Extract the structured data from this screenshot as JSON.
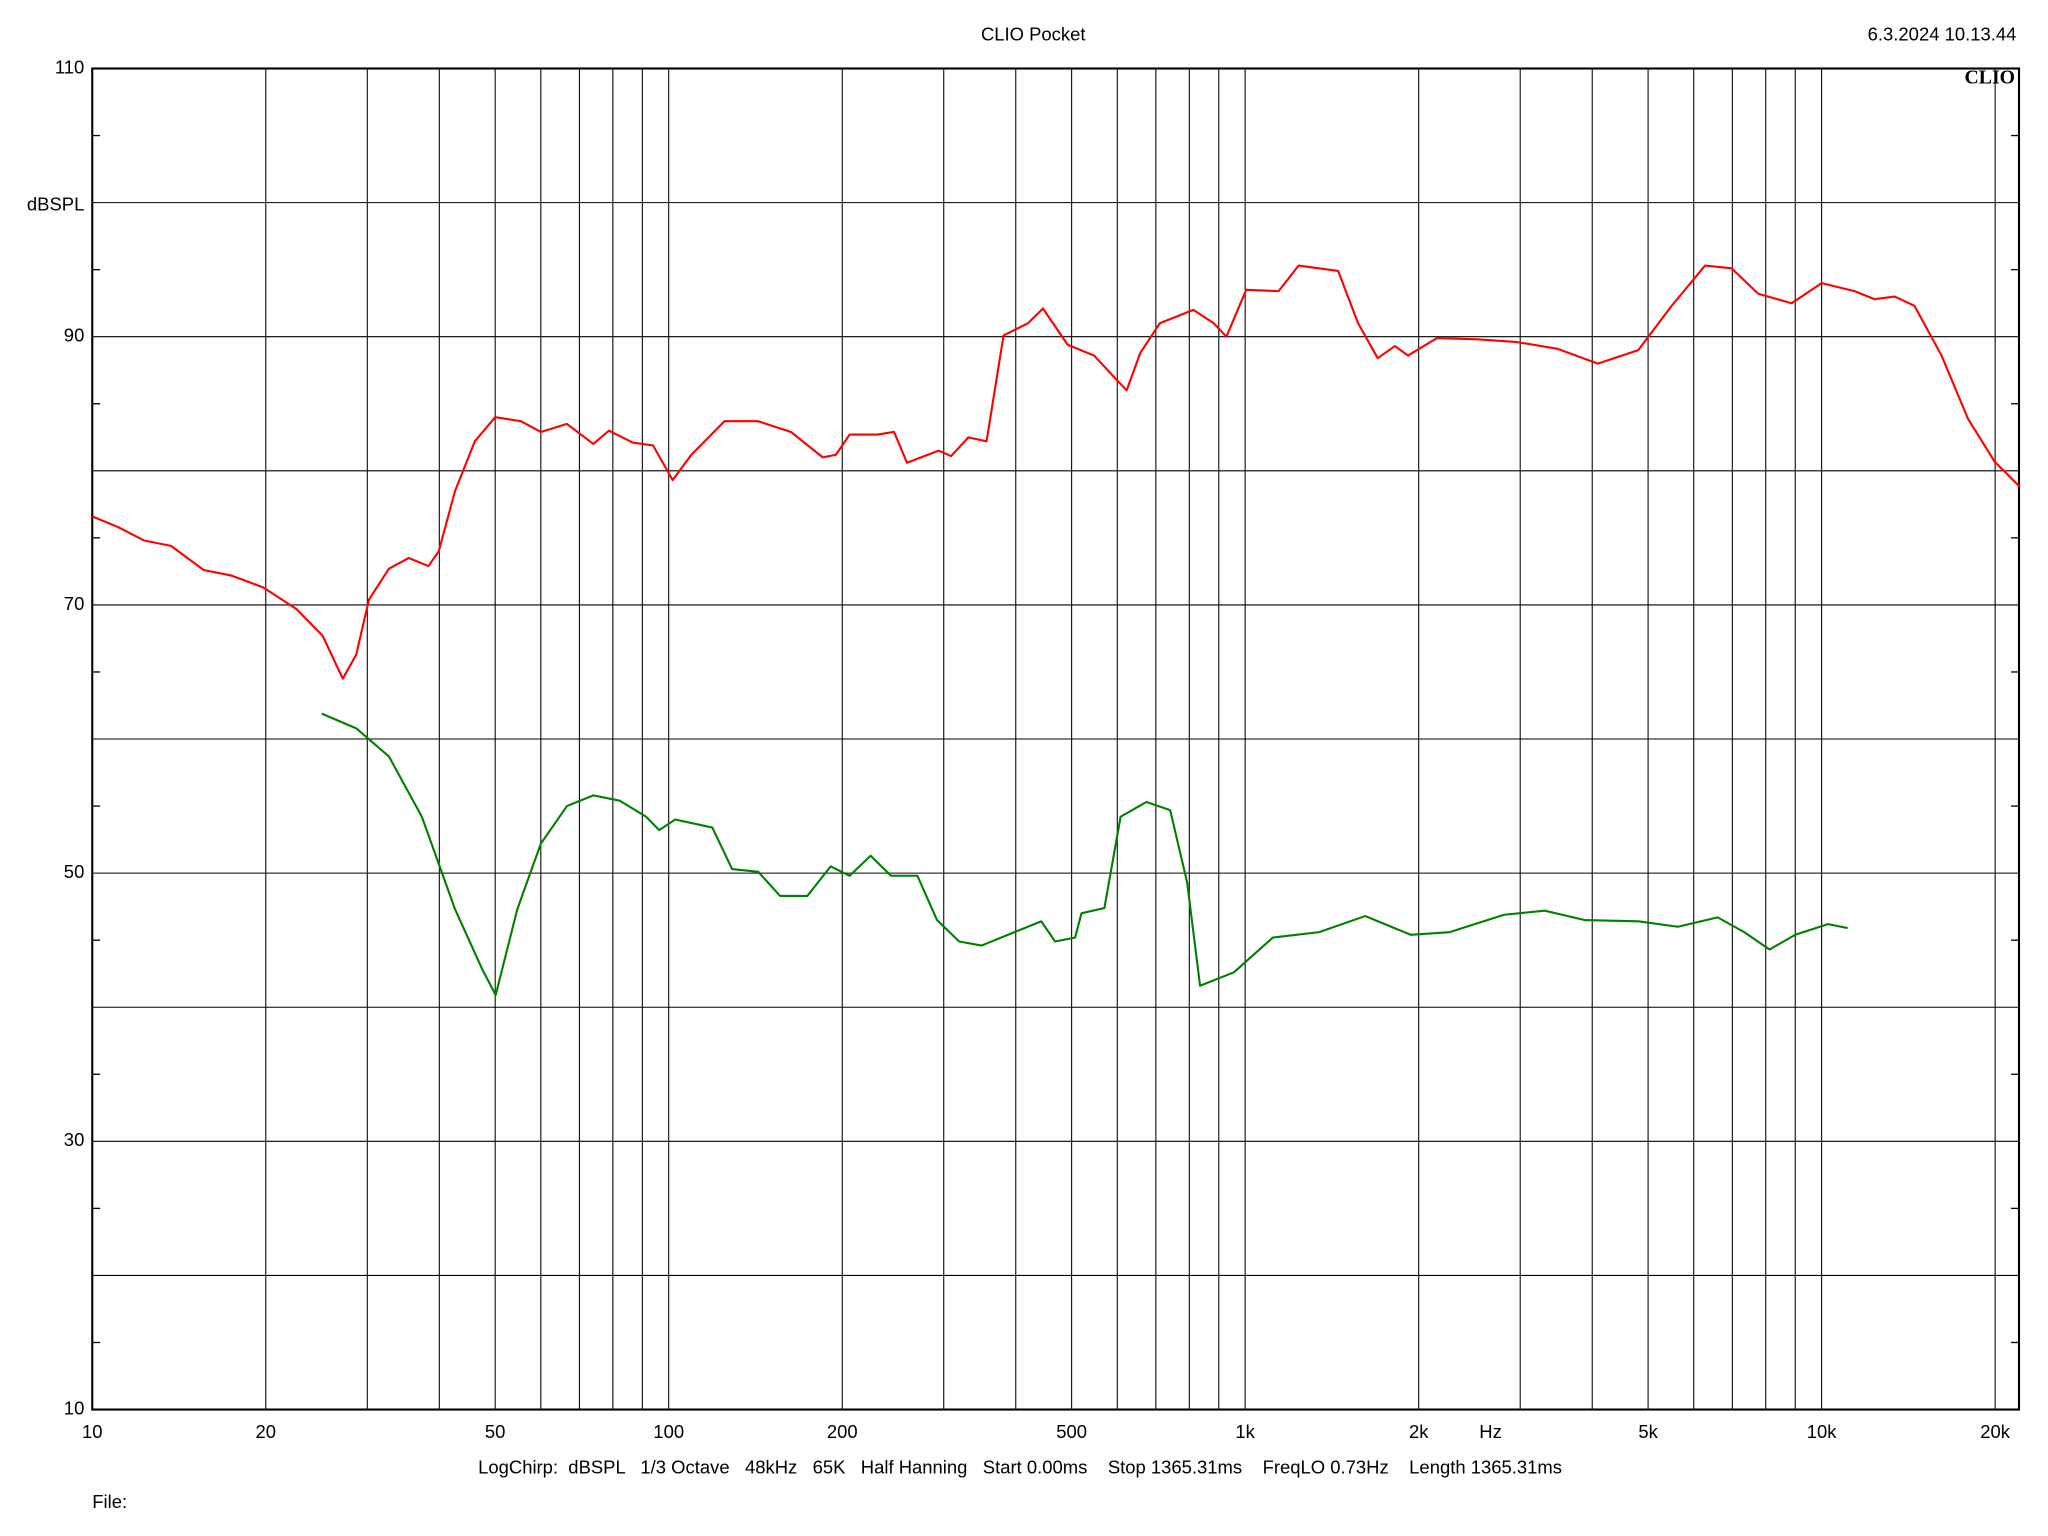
{
  "chart_data": {
    "type": "line",
    "title": "CLIO Pocket",
    "timestamp": "6.3.2024 10.13.44",
    "logo": "CLIO",
    "y_label": "dBSPL",
    "x_unit": "Hz",
    "footer": "LogChirp:  dBSPL   1/3 Octave   48kHz   65K   Half Hanning   Start 0.00ms    Stop 1365.31ms    FreqLO 0.73Hz    Length 1365.31ms",
    "file_label": "File:",
    "x_log": true,
    "grid": true,
    "xlim": [
      10,
      22000
    ],
    "ylim": [
      10,
      110
    ],
    "xticks": [
      10,
      20,
      50,
      100,
      200,
      500,
      {
        "value": 1000,
        "label": "1k"
      },
      {
        "value": 2000,
        "label": "2k"
      },
      {
        "value": 5000,
        "label": "5k"
      },
      {
        "value": 10000,
        "label": "10k"
      },
      {
        "value": 20000,
        "label": "20k"
      }
    ],
    "x_minor_ticks": [
      30,
      40,
      60,
      70,
      80,
      90,
      300,
      400,
      600,
      700,
      800,
      900,
      3000,
      4000,
      6000,
      7000,
      8000,
      9000
    ],
    "yticks": [
      10,
      30,
      50,
      70,
      90,
      110
    ],
    "y_minor_ticks": [
      20,
      40,
      60,
      80,
      100
    ],
    "y_small_ticks": [
      15,
      25,
      35,
      45,
      55,
      65,
      75,
      85,
      95,
      105
    ],
    "series": [
      {
        "color": "#ff0000",
        "x": [
          10,
          11.1,
          12.3,
          13.7,
          15.6,
          17.4,
          19.8,
          22.6,
          25.1,
          27.2,
          28.7,
          30.2,
          32.7,
          35.4,
          38.3,
          39.9,
          42.6,
          46.1,
          50,
          55.4,
          60,
          66.6,
          74,
          78.8,
          86.6,
          93.9,
          101.6,
          109.5,
          125,
          142.8,
          163,
          185,
          195,
          206,
          230,
          246,
          259,
          294,
          309,
          331,
          356,
          381,
          420,
          446,
          492,
          547,
          592,
          623,
          658,
          711,
          813,
          882,
          928,
          1004,
          1143,
          1238,
          1450,
          1570,
          1698,
          1818,
          1917,
          2152,
          2526,
          2965,
          3484,
          4090,
          4807,
          5492,
          6280,
          6984,
          7764,
          8874,
          10000,
          11400,
          12350,
          13390,
          14490,
          16140,
          17940,
          19950,
          22080
        ],
        "values": [
          76.6,
          75.8,
          74.8,
          74.4,
          72.6,
          72.2,
          71.3,
          69.7,
          67.7,
          64.5,
          66.3,
          70.4,
          72.7,
          73.5,
          72.9,
          74.0,
          78.5,
          82.2,
          84.0,
          83.7,
          82.9,
          83.5,
          82.0,
          83.0,
          82.1,
          81.9,
          79.3,
          81.2,
          83.7,
          83.7,
          82.9,
          81.0,
          81.2,
          82.7,
          82.7,
          82.9,
          80.6,
          81.5,
          81.1,
          82.5,
          82.2,
          90.1,
          91.0,
          92.1,
          89.4,
          88.6,
          87.0,
          86.0,
          88.8,
          91.0,
          92.0,
          91.0,
          90.0,
          93.5,
          93.4,
          95.3,
          94.9,
          91.0,
          88.4,
          89.3,
          88.6,
          89.9,
          89.8,
          89.6,
          89.1,
          88.0,
          89.0,
          92.3,
          95.3,
          95.1,
          93.2,
          92.5,
          94.0,
          93.4,
          92.8,
          93.0,
          92.3,
          88.6,
          83.9,
          80.7,
          78.8
        ]
      },
      {
        "color": "#008000",
        "x": [
          25,
          28.7,
          32.7,
          37.3,
          42.6,
          47.4,
          50.1,
          54.6,
          60,
          66.6,
          74,
          82.2,
          91.4,
          96.3,
          102.6,
          119,
          128.8,
          143,
          156,
          174,
          191,
          206,
          224,
          243,
          270,
          292,
          319,
          349,
          398,
          443,
          468,
          507,
          520,
          570,
          608,
          674,
          741,
          793,
          835,
          956,
          1117,
          1344,
          1615,
          1937,
          2263,
          2813,
          3308,
          3878,
          4807,
          5634,
          6600,
          7340,
          8120,
          9000,
          10260,
          11100
        ],
        "values": [
          61.9,
          60.8,
          58.7,
          54.2,
          47.3,
          42.9,
          40.9,
          47.3,
          52.2,
          55.0,
          55.8,
          55.4,
          54.2,
          53.2,
          54.0,
          53.4,
          50.3,
          50.1,
          48.3,
          48.3,
          50.5,
          49.8,
          51.3,
          49.8,
          49.8,
          46.5,
          44.9,
          44.6,
          45.6,
          46.4,
          44.9,
          45.2,
          47.0,
          47.4,
          54.2,
          55.3,
          54.7,
          49.3,
          41.6,
          42.6,
          45.2,
          45.6,
          46.8,
          45.4,
          45.6,
          46.9,
          47.2,
          46.5,
          46.4,
          46.0,
          46.7,
          45.6,
          44.3,
          45.4,
          46.2,
          45.9
        ]
      }
    ]
  }
}
